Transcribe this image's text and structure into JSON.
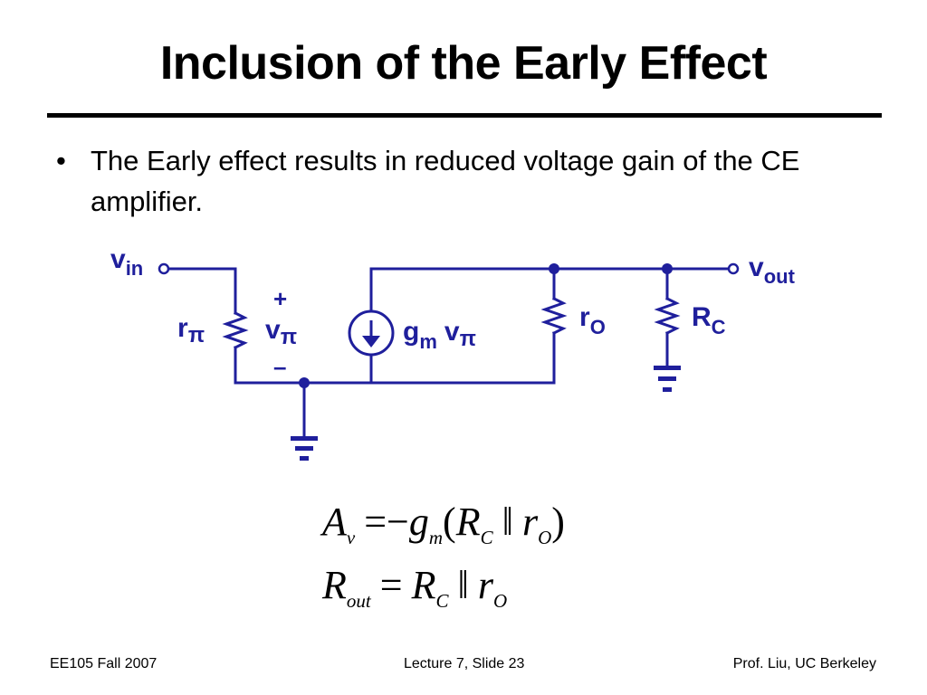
{
  "slide": {
    "title": "Inclusion of the Early Effect",
    "bullet": "The Early effect results in reduced voltage gain of the CE amplifier."
  },
  "circuit": {
    "labels": {
      "vin_main": "v",
      "vin_sub": "in",
      "vout_main": "v",
      "vout_sub": "out",
      "rpi_main": "r",
      "rpi_sub": "π",
      "vpi_main": "v",
      "vpi_sub": "π",
      "plus": "+",
      "minus": "–",
      "gm_main": "g",
      "gm_sub": "m",
      "gm_v": "v",
      "gm_vsub": "π",
      "ro_main": "r",
      "ro_sub": "O",
      "rc_main": "R",
      "rc_sub": "C"
    },
    "color": "#1f1f9c"
  },
  "equations": {
    "gain": {
      "lhs": "A",
      "lhs_sub": "v",
      "equals": "=",
      "minus": "−",
      "gm": "g",
      "gm_sub": "m",
      "open": "(",
      "rc": "R",
      "rc_sub": "C",
      "parallel": "‖",
      "ro": "r",
      "ro_sub": "O",
      "close": ")"
    },
    "rout": {
      "lhs": "R",
      "lhs_sub": "out",
      "equals": "=",
      "rc": "R",
      "rc_sub": "C",
      "parallel": "‖",
      "ro": "r",
      "ro_sub": "O"
    }
  },
  "footer": {
    "left": "EE105 Fall 2007",
    "center": "Lecture 7, Slide 23",
    "right": "Prof. Liu, UC Berkeley"
  }
}
